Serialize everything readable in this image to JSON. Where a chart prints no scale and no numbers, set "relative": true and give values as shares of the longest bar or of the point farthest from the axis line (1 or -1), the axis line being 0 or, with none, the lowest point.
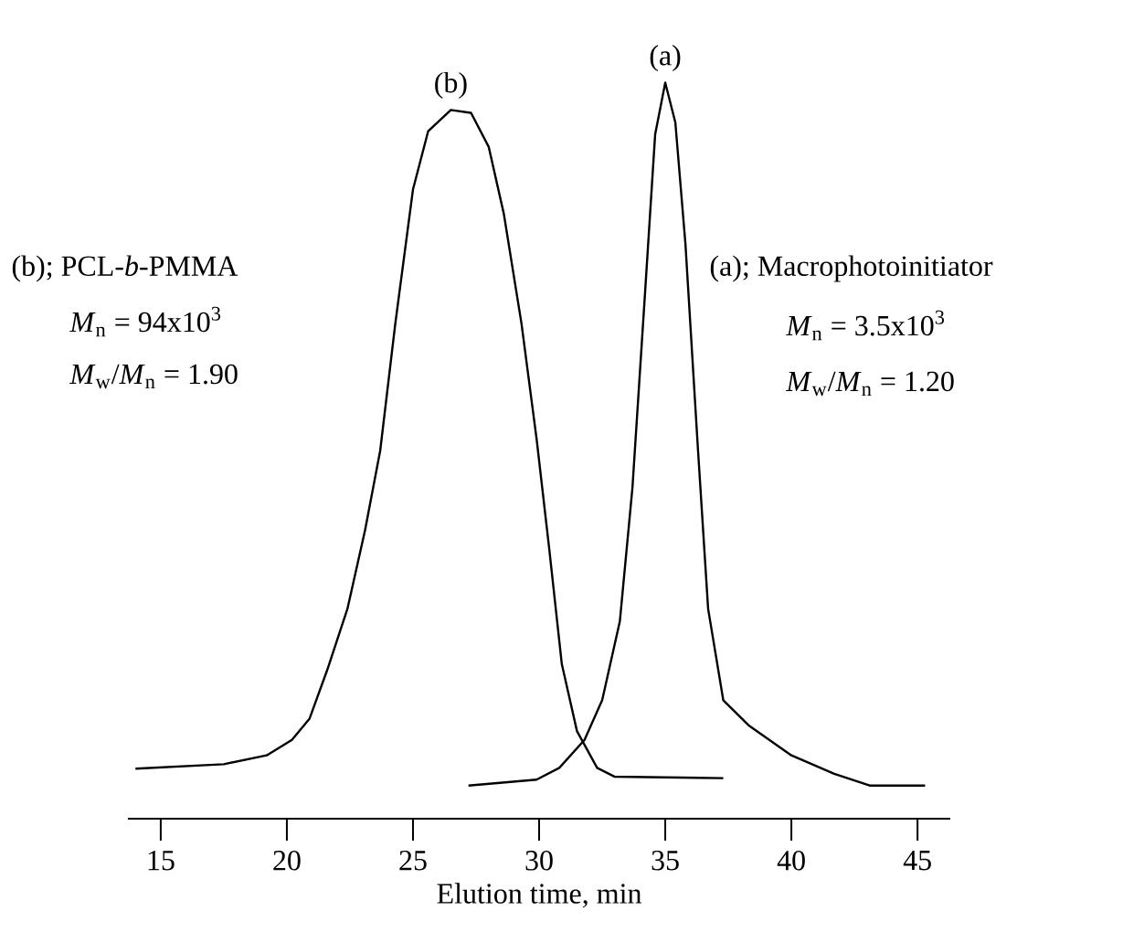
{
  "chart_data": {
    "type": "line",
    "relative": true,
    "xlabel": "Elution time, min",
    "xlim": [
      13.7,
      46.3
    ],
    "xticks": [
      15,
      20,
      25,
      30,
      35,
      40,
      45
    ],
    "series": [
      {
        "name": "(b)",
        "color": "#000000",
        "x": [
          14.0,
          17.5,
          19.2,
          20.2,
          20.9,
          21.6,
          22.4,
          23.1,
          23.7,
          24.3,
          25.0,
          25.6,
          26.5,
          27.3,
          28.0,
          28.6,
          29.3,
          29.9,
          30.4,
          30.9,
          31.5,
          32.3,
          33.0,
          37.3
        ],
        "values": [
          0.068,
          0.074,
          0.086,
          0.107,
          0.136,
          0.202,
          0.285,
          0.392,
          0.5,
          0.673,
          0.855,
          0.934,
          0.963,
          0.959,
          0.913,
          0.822,
          0.673,
          0.516,
          0.367,
          0.21,
          0.119,
          0.069,
          0.057,
          0.055
        ]
      },
      {
        "name": "(a)",
        "color": "#000000",
        "x": [
          27.2,
          29.9,
          30.8,
          31.8,
          32.5,
          33.2,
          33.7,
          34.2,
          34.6,
          35.0,
          35.4,
          35.8,
          36.3,
          36.7,
          37.3,
          38.3,
          40.0,
          41.7,
          43.1,
          45.3
        ],
        "values": [
          0.045,
          0.053,
          0.069,
          0.107,
          0.161,
          0.268,
          0.45,
          0.715,
          0.93,
          1.0,
          0.946,
          0.781,
          0.5,
          0.285,
          0.161,
          0.127,
          0.086,
          0.061,
          0.045,
          0.045
        ]
      }
    ],
    "annotations": [
      "(b); PCL-*b*-PMMA",
      "*M*$_{n}$ = 94x10$^{3}$",
      "*M*$_{w}$/*M*$_{n}$ = 1.90",
      "(a); Macrophotoinitiator",
      "*M*$_{n}$ = 3.5x10$^{3}$",
      "*M*$_{w}$/*M*$_{n}$ = 1.20"
    ]
  }
}
